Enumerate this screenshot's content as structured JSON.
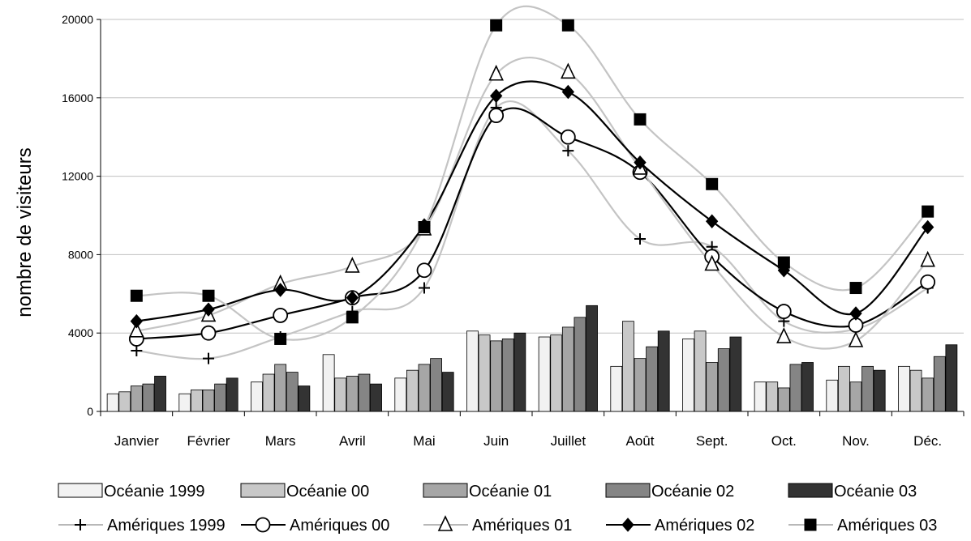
{
  "chart_data": {
    "type": "bar",
    "ylabel": "nombre de visiteurs",
    "ylim": [
      0,
      20000
    ],
    "yticks": [
      "0",
      "4000",
      "8000",
      "12000",
      "16000",
      "20000"
    ],
    "grid": true,
    "legend_position": "bottom",
    "categories": [
      "Janvier",
      "Février",
      "Mars",
      "Avril",
      "Mai",
      "Juin",
      "Juillet",
      "Août",
      "Sept.",
      "Oct.",
      "Nov.",
      "Déc."
    ],
    "bar_series": [
      {
        "name": "Océanie 1999",
        "color": "#f2f2f2",
        "values": [
          900,
          900,
          1500,
          2900,
          1700,
          4100,
          3800,
          2300,
          3700,
          1500,
          1600,
          2300
        ]
      },
      {
        "name": "Océanie 00",
        "color": "#c8c8c8",
        "values": [
          1000,
          1100,
          1900,
          1700,
          2100,
          3900,
          3900,
          4600,
          4100,
          1500,
          2300,
          2100
        ]
      },
      {
        "name": "Océanie 01",
        "color": "#a6a6a6",
        "values": [
          1300,
          1100,
          2400,
          1800,
          2400,
          3600,
          4300,
          2700,
          2500,
          1200,
          1500,
          1700
        ]
      },
      {
        "name": "Océanie 02",
        "color": "#858585",
        "values": [
          1400,
          1400,
          2000,
          1900,
          2700,
          3700,
          4800,
          3300,
          3200,
          2400,
          2300,
          2800
        ]
      },
      {
        "name": "Océanie 03",
        "color": "#333333",
        "values": [
          1800,
          1700,
          1300,
          1400,
          2000,
          4000,
          5400,
          4100,
          3800,
          2500,
          2100,
          3400
        ]
      }
    ],
    "line_series": [
      {
        "name": "Amériques 1999",
        "marker": "plus",
        "line": "#c4c4c4",
        "values": [
          3100,
          2700,
          3800,
          5100,
          6300,
          15500,
          13300,
          8800,
          8400,
          4600,
          4200,
          6300
        ]
      },
      {
        "name": "Amériques 00",
        "marker": "circle",
        "line": "#000000",
        "values": [
          3700,
          4000,
          4900,
          5800,
          7200,
          15100,
          14000,
          12200,
          7900,
          5100,
          4400,
          6600
        ]
      },
      {
        "name": "Amériques 01",
        "marker": "triangle",
        "line": "#c4c4c4",
        "values": [
          4100,
          4900,
          6500,
          7400,
          9300,
          17200,
          17300,
          12400,
          7500,
          3800,
          3600,
          7700
        ]
      },
      {
        "name": "Amériques 02",
        "marker": "diamond",
        "line": "#000000",
        "values": [
          4600,
          5200,
          6200,
          5800,
          9500,
          16100,
          16300,
          12700,
          9700,
          7200,
          5000,
          9400
        ]
      },
      {
        "name": "Amériques 03",
        "marker": "square",
        "line": "#c4c4c4",
        "values": [
          5900,
          5900,
          3700,
          4800,
          9400,
          19700,
          19700,
          14900,
          11600,
          7600,
          6300,
          10200
        ]
      }
    ]
  }
}
